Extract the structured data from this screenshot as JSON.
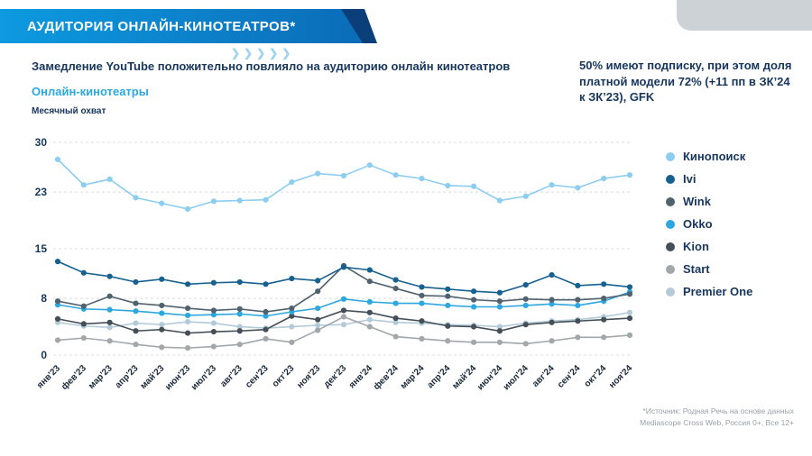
{
  "banner": {
    "title": "АУДИТОРИЯ ОНЛАЙН-КИНОТЕАТРОВ*"
  },
  "icons": {
    "chevrons_glyph": "❯❯❯❯❯"
  },
  "header": {
    "subtitle": "Замедление YouTube положительно повлияло на аудиторию онлайн кинотеатров",
    "right_note": "50% имеют подписку, при этом доля платной модели 72% (+11 пп в ЗК’24 к ЗК’23), GFK"
  },
  "chart": {
    "section_title": "Онлайн-кинотеатры",
    "subtitle": "Месячный охват"
  },
  "chart_data": {
    "type": "line",
    "title": "Онлайн-кинотеатры",
    "ylabel": "Месячный охват",
    "xlabel": "",
    "ylim": [
      0,
      30
    ],
    "yticks": [
      0,
      8,
      15,
      23,
      30
    ],
    "grid": "dashed-horizontal",
    "legend_position": "right",
    "x": [
      "янв'23",
      "фев'23",
      "мар'23",
      "апр'23",
      "май'23",
      "июн'23",
      "июл'23",
      "авг'23",
      "сен'23",
      "окт'23",
      "ноя'23",
      "дек'23",
      "янв'24",
      "фев'24",
      "мар'24",
      "апр'24",
      "май'24",
      "июн'24",
      "июл'24",
      "авг'24",
      "сен'24",
      "окт'24",
      "ноя'24"
    ],
    "series": [
      {
        "name": "Кинопоиск",
        "color": "#8ccdf0",
        "values": [
          27.6,
          24.0,
          24.8,
          22.2,
          21.4,
          20.6,
          21.7,
          21.8,
          21.9,
          24.4,
          25.6,
          25.3,
          26.8,
          25.4,
          24.9,
          23.9,
          23.8,
          21.8,
          22.4,
          24.0,
          23.6,
          24.9,
          25.4
        ]
      },
      {
        "name": "Ivi",
        "color": "#16618f",
        "values": [
          13.2,
          11.6,
          11.1,
          10.3,
          10.7,
          10.0,
          10.2,
          10.3,
          10.0,
          10.8,
          10.5,
          12.4,
          12.0,
          10.6,
          9.6,
          9.3,
          9.0,
          8.8,
          9.9,
          11.3,
          9.8,
          10.0,
          9.6
        ]
      },
      {
        "name": "Wink",
        "color": "#51626f",
        "values": [
          7.6,
          6.9,
          8.3,
          7.3,
          7.0,
          6.6,
          6.3,
          6.5,
          6.1,
          6.6,
          9.0,
          12.6,
          10.4,
          9.4,
          8.4,
          8.3,
          7.8,
          7.6,
          7.9,
          7.8,
          7.8,
          8.0,
          8.6
        ]
      },
      {
        "name": "Okko",
        "color": "#2da7e0",
        "values": [
          7.1,
          6.5,
          6.4,
          6.2,
          5.9,
          5.6,
          5.7,
          5.8,
          5.5,
          6.1,
          6.6,
          7.9,
          7.5,
          7.3,
          7.3,
          7.0,
          6.8,
          6.8,
          7.0,
          7.2,
          7.0,
          7.6,
          8.9
        ]
      },
      {
        "name": "Kion",
        "color": "#454f57",
        "values": [
          5.1,
          4.4,
          4.6,
          3.4,
          3.6,
          3.1,
          3.3,
          3.4,
          3.6,
          5.5,
          5.0,
          6.3,
          6.0,
          5.2,
          4.8,
          4.1,
          4.0,
          3.4,
          4.3,
          4.6,
          4.8,
          5.0,
          5.2
        ]
      },
      {
        "name": "Start",
        "color": "#a2a7ab",
        "values": [
          2.1,
          2.4,
          2.0,
          1.5,
          1.1,
          1.0,
          1.2,
          1.5,
          2.3,
          1.8,
          3.5,
          5.4,
          4.0,
          2.6,
          2.3,
          2.0,
          1.8,
          1.8,
          1.6,
          2.0,
          2.5,
          2.5,
          2.8
        ]
      },
      {
        "name": "Premier One",
        "color": "#b3cbd9",
        "values": [
          4.6,
          4.1,
          3.9,
          4.5,
          4.3,
          4.7,
          4.5,
          4.0,
          3.8,
          4.0,
          4.2,
          4.3,
          5.0,
          4.6,
          4.5,
          4.3,
          4.2,
          4.0,
          4.5,
          4.8,
          5.0,
          5.4,
          6.0
        ]
      }
    ]
  },
  "footnote": {
    "line1": "*Источник: Родная Речь на основе данных",
    "line2": "Mediascope Cross Web, Россия 0+, Все 12+"
  }
}
